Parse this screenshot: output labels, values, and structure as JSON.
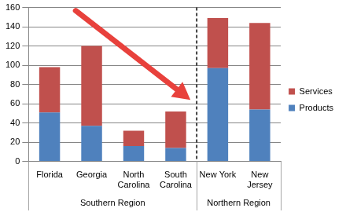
{
  "chart_data": {
    "type": "bar",
    "stacked": true,
    "grid": true,
    "legend": "right",
    "categories": [
      "Florida",
      "Georgia",
      "North Carolina",
      "South Carolina",
      "New York",
      "New Jersey"
    ],
    "category_groups": [
      "Southern Region",
      "Southern Region",
      "Southern Region",
      "Southern Region",
      "Northern Region",
      "Northern Region"
    ],
    "series": [
      {
        "name": "Products",
        "color": "#4f81bd",
        "values": [
          51,
          37,
          16,
          14,
          97,
          54
        ]
      },
      {
        "name": "Services",
        "color": "#c0504d",
        "values": [
          47,
          83,
          16,
          38,
          52,
          90
        ]
      }
    ],
    "ylim": [
      0,
      160
    ],
    "yticks": [
      0,
      20,
      40,
      60,
      80,
      100,
      120,
      140,
      160
    ]
  }
}
